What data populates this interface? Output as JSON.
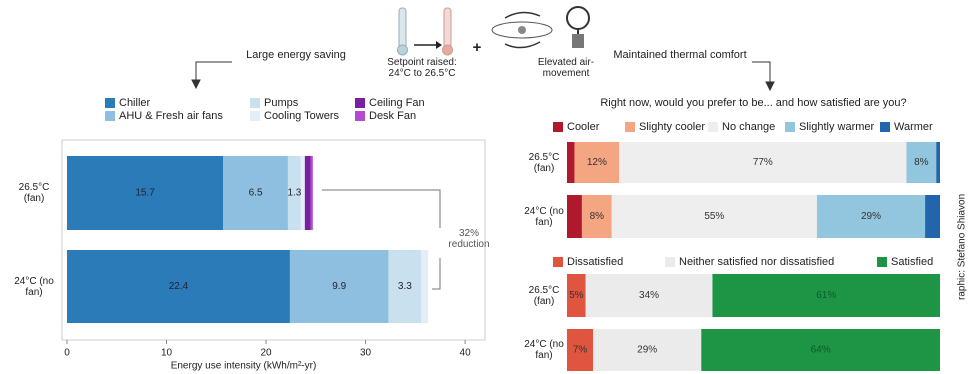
{
  "header": {
    "left_label": "Large energy saving",
    "setpoint": "Setpoint raised: 24°C to 26.5°C",
    "plus": "+",
    "air": "Elevated air-movement",
    "right_label": "Maintained thermal comfort",
    "credit": "raphic: Stefano Shiavon"
  },
  "chart_data": [
    {
      "type": "bar",
      "orientation": "horizontal",
      "stacked": true,
      "categories": [
        "26.5°C (fan)",
        "24°C (no fan)"
      ],
      "series": [
        {
          "name": "Chiller",
          "color": "#2b7bb9",
          "values": [
            15.7,
            22.4
          ],
          "show_labels": true
        },
        {
          "name": "AHU & Fresh air fans",
          "color": "#8fbfe0",
          "values": [
            6.5,
            9.9
          ],
          "show_labels": true
        },
        {
          "name": "Pumps",
          "color": "#c9e0ef",
          "values": [
            1.3,
            3.3
          ],
          "show_labels": true
        },
        {
          "name": "Cooling Towers",
          "color": "#e3eef6",
          "values": [
            0.4,
            0.7
          ]
        },
        {
          "name": "Ceiling Fan",
          "color": "#7a1fa2",
          "values": [
            0.6,
            0
          ]
        },
        {
          "name": "Desk Fan",
          "color": "#b54ad0",
          "values": [
            0.2,
            0
          ]
        }
      ],
      "xlim": [
        -0.5,
        42
      ],
      "xticks": [
        0,
        10,
        20,
        30,
        40
      ],
      "xlabel": "Energy use intensity (kWh/m²-yr)",
      "annotation": "32% reduction"
    },
    {
      "type": "bar",
      "orientation": "horizontal",
      "stacked": true,
      "title": "Right now, would you prefer to be... and how satisfied are you?",
      "categories": [
        "26.5°C (fan)",
        "24°C (no fan)"
      ],
      "series": [
        {
          "name": "Cooler",
          "color": "#b0182e",
          "values": [
            2,
            4
          ]
        },
        {
          "name": "Slighty cooler",
          "color": "#f4a582",
          "values": [
            12,
            8
          ],
          "value_labels": [
            "12%",
            "8%"
          ]
        },
        {
          "name": "No change",
          "color": "#eeeeee",
          "values": [
            77,
            55
          ],
          "value_labels": [
            "77%",
            "55%"
          ]
        },
        {
          "name": "Slightly warmer",
          "color": "#92c5de",
          "values": [
            8,
            29
          ],
          "value_labels": [
            "8%",
            "29%"
          ]
        },
        {
          "name": "Warmer",
          "color": "#2166ac",
          "values": [
            1,
            4
          ]
        }
      ]
    },
    {
      "type": "bar",
      "orientation": "horizontal",
      "stacked": true,
      "categories": [
        "26.5°C (fan)",
        "24°C (no fan)"
      ],
      "series": [
        {
          "name": "Dissatisfied",
          "color": "#e0553f",
          "values": [
            5,
            7
          ],
          "value_labels": [
            "5%",
            "7%"
          ]
        },
        {
          "name": "Neither satisfied nor dissatisfied",
          "color": "#ebebeb",
          "values": [
            34,
            29
          ],
          "value_labels": [
            "34%",
            "29%"
          ]
        },
        {
          "name": "Satisfied",
          "color": "#1e9445",
          "values": [
            61,
            64
          ],
          "value_labels": [
            "61%",
            "64%"
          ]
        }
      ]
    }
  ]
}
